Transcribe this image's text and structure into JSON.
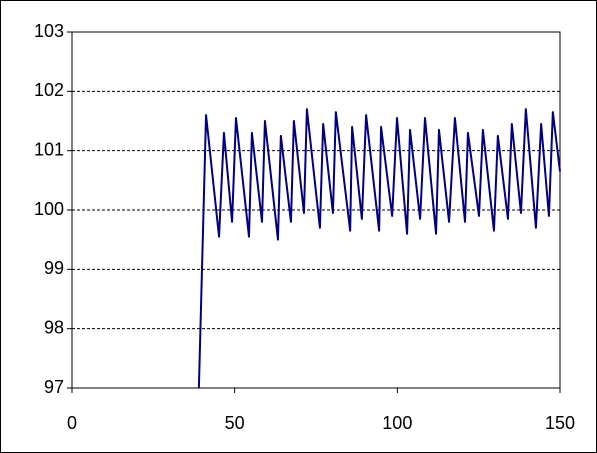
{
  "chart_data": {
    "type": "line",
    "x": [
      39.0,
      41.2,
      45.2,
      46.7,
      49.2,
      50.4,
      54.4,
      55.3,
      58.4,
      59.3,
      63.3,
      64.2,
      67.3,
      68.2,
      71.3,
      72.2,
      76.2,
      77.2,
      80.2,
      81.1,
      85.5,
      86.1,
      89.1,
      90.4,
      94.4,
      95.0,
      98.4,
      99.9,
      103.0,
      103.9,
      107.0,
      108.5,
      111.9,
      112.8,
      115.9,
      117.7,
      120.8,
      121.7,
      125.1,
      126.3,
      129.7,
      130.9,
      134.0,
      135.2,
      138.0,
      139.5,
      142.6,
      144.2,
      146.6,
      147.8,
      150.0
    ],
    "series": [
      {
        "color": "#000080",
        "values": [
          97,
          101.6,
          99.55,
          101.3,
          99.8,
          101.55,
          99.55,
          101.3,
          99.8,
          101.5,
          99.5,
          101.25,
          99.8,
          101.5,
          99.95,
          101.7,
          99.7,
          101.45,
          99.95,
          101.65,
          99.65,
          101.4,
          99.85,
          101.6,
          99.65,
          101.4,
          99.9,
          101.55,
          99.6,
          101.35,
          99.85,
          101.55,
          99.6,
          101.35,
          99.8,
          101.55,
          99.8,
          101.3,
          99.9,
          101.35,
          99.65,
          101.25,
          99.85,
          101.45,
          99.95,
          101.7,
          99.7,
          101.45,
          99.9,
          101.65,
          100.65
        ]
      }
    ],
    "xlim": [
      0,
      150
    ],
    "xticks": [
      0,
      50,
      100,
      150
    ],
    "ylim": [
      97,
      103
    ],
    "yticks": [
      97,
      98,
      99,
      100,
      101,
      102,
      103
    ],
    "grid": true
  }
}
